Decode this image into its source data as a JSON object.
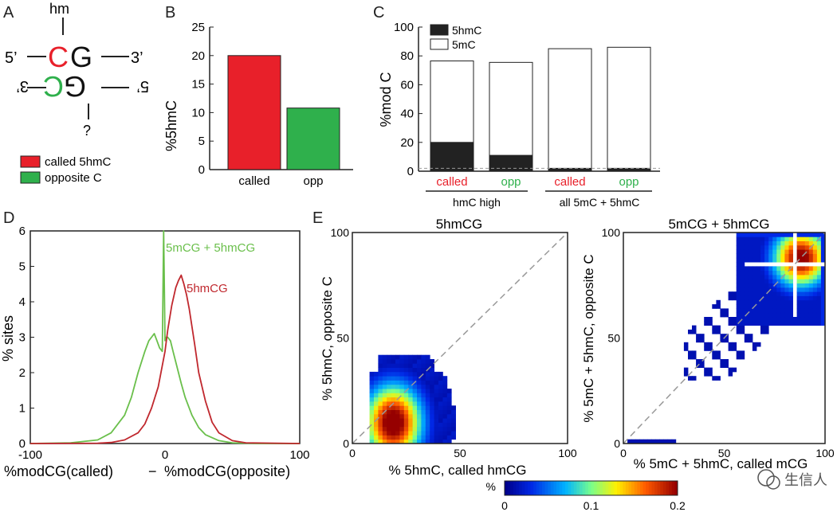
{
  "panel_labels": [
    "A",
    "B",
    "C",
    "D",
    "E"
  ],
  "panelA": {
    "top_label": "hm",
    "bottom_label": "?",
    "top_c": "C",
    "top_g": "G",
    "bottom_c": "C",
    "bottom_g": "G",
    "left_top": "5’",
    "right_top": "3’",
    "left_bottom": "3’",
    "right_bottom": "5’",
    "legend": [
      {
        "label": "called 5hmC",
        "color": "#e8202a"
      },
      {
        "label": "opposite C",
        "color": "#2fb04c"
      }
    ]
  },
  "chart_data": [
    {
      "panel": "B",
      "type": "bar",
      "categories": [
        "called",
        "opp"
      ],
      "values": [
        20,
        10.8
      ],
      "colors": [
        "#e8202a",
        "#2fb04c"
      ],
      "ylabel": "%5hmC",
      "ylim": [
        0,
        25
      ],
      "yticks": [
        "0",
        "5",
        "10",
        "15",
        "20",
        "25"
      ]
    },
    {
      "panel": "C",
      "type": "bar",
      "stacked": true,
      "categories": [
        "called",
        "opp",
        "called",
        "opp"
      ],
      "category_colors": [
        "#e8202a",
        "#2fb04c",
        "#e8202a",
        "#2fb04c"
      ],
      "groups": [
        "hmC high",
        "all 5mC + 5hmC"
      ],
      "series": [
        {
          "name": "5hmC",
          "color": "#222222",
          "values": [
            20,
            11,
            2,
            2
          ]
        },
        {
          "name": "5mC",
          "color": "#ffffff",
          "values": [
            56.5,
            64.5,
            83,
            84
          ]
        }
      ],
      "ylabel": "%mod C",
      "ylim": [
        0,
        100
      ],
      "yticks": [
        "0",
        "20",
        "40",
        "60",
        "80",
        "100"
      ]
    },
    {
      "panel": "D",
      "type": "line",
      "xlabel_left": "%modCG(called)",
      "xlabel_minus": "−",
      "xlabel_right": "%modCG(opposite)",
      "ylabel": "% sites",
      "xlim": [
        -100,
        100
      ],
      "ylim": [
        0,
        6
      ],
      "xticks": [
        "-100",
        "0",
        "100"
      ],
      "yticks": [
        "0",
        "1",
        "2",
        "3",
        "4",
        "5",
        "6"
      ],
      "series": [
        {
          "name": "5mCG + 5hmCG",
          "color": "#6abf4b",
          "x": [
            -100,
            -70,
            -50,
            -40,
            -30,
            -25,
            -20,
            -15,
            -12,
            -10,
            -8,
            -6,
            -4,
            -2,
            -1,
            0,
            1,
            2,
            4,
            6,
            8,
            10,
            12,
            15,
            20,
            25,
            30,
            40,
            50,
            70,
            100
          ],
          "y": [
            0,
            0.02,
            0.1,
            0.3,
            0.8,
            1.3,
            2.0,
            2.6,
            2.9,
            3.0,
            3.1,
            2.9,
            2.7,
            2.6,
            6.0,
            2.9,
            3.0,
            3.0,
            2.9,
            2.6,
            2.3,
            2.0,
            1.7,
            1.3,
            0.8,
            0.45,
            0.25,
            0.08,
            0.02,
            0,
            0
          ]
        },
        {
          "name": "5hmCG",
          "color": "#c0282e",
          "x": [
            -100,
            -50,
            -40,
            -30,
            -20,
            -15,
            -10,
            -5,
            0,
            2,
            5,
            8,
            10,
            12,
            14,
            16,
            18,
            20,
            22,
            25,
            30,
            35,
            40,
            50,
            60,
            100
          ],
          "y": [
            0,
            0.01,
            0.03,
            0.1,
            0.3,
            0.55,
            1.0,
            1.6,
            2.6,
            3.2,
            3.9,
            4.4,
            4.6,
            4.75,
            4.5,
            4.2,
            3.8,
            3.3,
            2.8,
            2.0,
            1.2,
            0.6,
            0.3,
            0.08,
            0.02,
            0
          ]
        }
      ]
    },
    {
      "panel": "E-left",
      "type": "heatmap",
      "title": "5hmCG",
      "xlabel": "% 5hmC, called hmCG",
      "ylabel": "% 5hmC, opposite C",
      "xlim": [
        0,
        100
      ],
      "ylim": [
        0,
        100
      ],
      "xticks": [
        "0",
        "50",
        "100"
      ],
      "yticks": [
        "0",
        "50",
        "100"
      ],
      "diagonal": true
    },
    {
      "panel": "E-right",
      "type": "heatmap",
      "title": "5mCG + 5hmCG",
      "xlabel": "% 5mC + 5hmC, called mCG",
      "ylabel": "% 5mC + 5hmC, opposite C",
      "xlim": [
        0,
        100
      ],
      "ylim": [
        0,
        100
      ],
      "xticks": [
        "0",
        "50",
        "100"
      ],
      "yticks": [
        "0",
        "50",
        "100"
      ],
      "diagonal": true
    }
  ],
  "colorbar": {
    "label": "%",
    "ticks": [
      "0",
      "0.1",
      "0.2"
    ],
    "range": [
      0,
      0.2
    ]
  },
  "watermark": "生信人"
}
